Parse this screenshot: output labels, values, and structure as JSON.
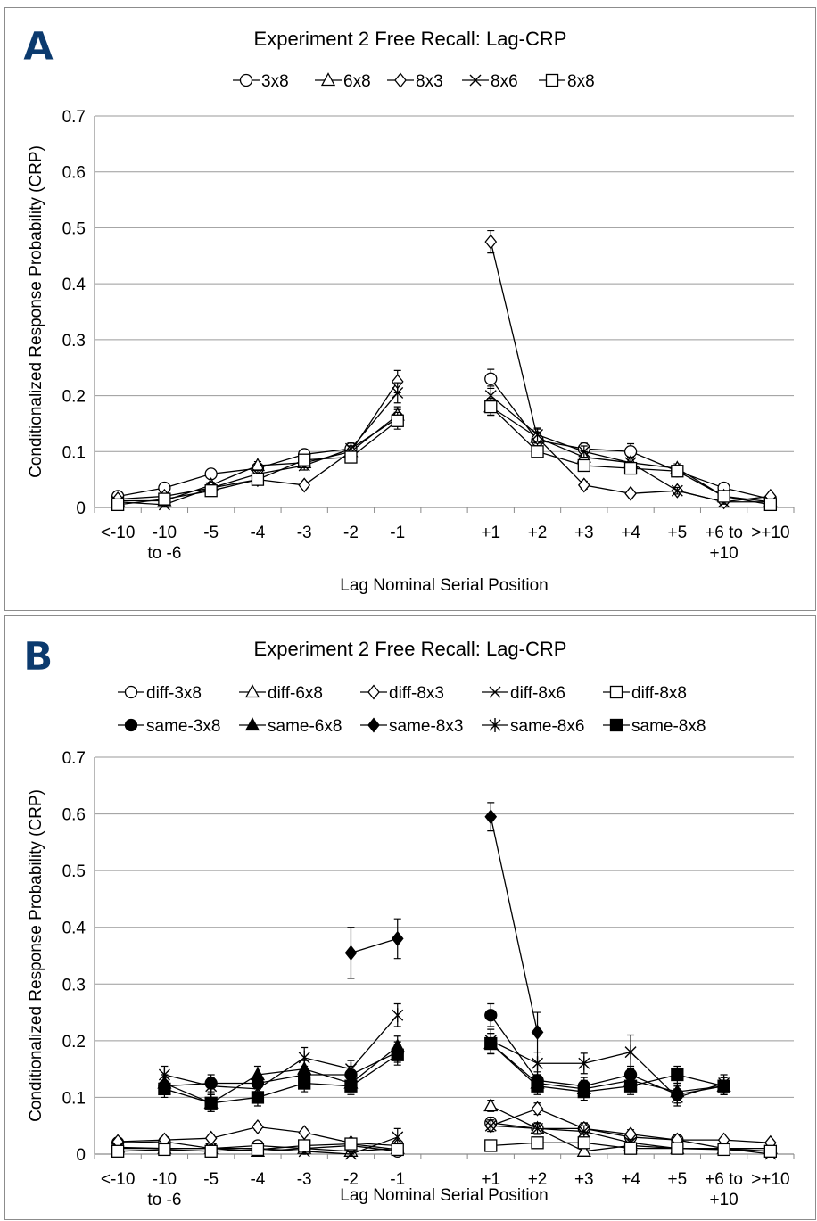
{
  "chart_data": [
    {
      "panel": "A",
      "type": "line",
      "title": "Experiment 2 Free Recall: Lag-CRP",
      "xlabel": "Lag Nominal Serial Position",
      "ylabel": "Conditionalized Response Probability (CRP)",
      "ylim": [
        0,
        0.7
      ],
      "yticks": [
        "0",
        "0.1",
        "0.2",
        "0.3",
        "0.4",
        "0.5",
        "0.6",
        "0.7"
      ],
      "categories": [
        "<-10",
        "-10 to -6",
        "-5",
        "-4",
        "-3",
        "-2",
        "-1",
        "",
        "+1",
        "+2",
        "+3",
        "+4",
        "+5",
        "+6 to +10",
        ">+10"
      ],
      "category_lines": [
        [
          "<-10"
        ],
        [
          "-10",
          "to -6"
        ],
        [
          "-5"
        ],
        [
          "-4"
        ],
        [
          "-3"
        ],
        [
          "-2"
        ],
        [
          "-1"
        ],
        [
          ""
        ],
        [
          "+1"
        ],
        [
          "+2"
        ],
        [
          "+3"
        ],
        [
          "+4"
        ],
        [
          "+5"
        ],
        [
          "+6 to",
          "+10"
        ],
        [
          ">+10"
        ]
      ],
      "grid": "horizontal",
      "legend_position": "top",
      "series": [
        {
          "name": "3x8",
          "marker": "circle",
          "fill": "open",
          "values": [
            0.02,
            0.035,
            0.06,
            0.07,
            0.095,
            0.105,
            0.16,
            null,
            0.23,
            0.12,
            0.105,
            0.1,
            0.065,
            0.035,
            0.015
          ],
          "err": [
            0.005,
            0.005,
            0.006,
            0.007,
            0.009,
            0.01,
            0.015,
            null,
            0.017,
            0.01,
            0.01,
            0.014,
            0.01,
            0.006,
            0.004
          ]
        },
        {
          "name": "6x8",
          "marker": "triangle",
          "fill": "open",
          "values": [
            0.012,
            0.012,
            0.04,
            0.075,
            0.08,
            0.1,
            0.165,
            null,
            0.18,
            0.125,
            0.09,
            0.08,
            0.07,
            0.02,
            0.01
          ],
          "err": [
            0.004,
            0.004,
            0.005,
            0.007,
            0.008,
            0.01,
            0.015,
            null,
            0.015,
            0.01,
            0.01,
            0.01,
            0.008,
            0.005,
            0.004
          ]
        },
        {
          "name": "8x3",
          "marker": "diamond",
          "fill": "open",
          "values": [
            0.015,
            0.02,
            0.035,
            0.05,
            0.04,
            0.1,
            0.225,
            null,
            0.475,
            0.125,
            0.04,
            0.025,
            0.03,
            0.01,
            0.02
          ],
          "err": [
            0.004,
            0.005,
            0.005,
            0.006,
            0.006,
            0.01,
            0.02,
            null,
            0.02,
            0.015,
            0.007,
            0.005,
            0.005,
            0.004,
            0.004
          ]
        },
        {
          "name": "8x6",
          "marker": "x",
          "fill": "open",
          "values": [
            0.01,
            0.005,
            0.035,
            0.06,
            0.075,
            0.105,
            0.205,
            null,
            0.2,
            0.13,
            0.1,
            0.08,
            0.03,
            0.01,
            0.01
          ],
          "err": [
            0.004,
            0.004,
            0.005,
            0.007,
            0.008,
            0.01,
            0.018,
            null,
            0.017,
            0.012,
            0.01,
            0.01,
            0.006,
            0.004,
            0.004
          ]
        },
        {
          "name": "8x8",
          "marker": "square",
          "fill": "open",
          "values": [
            0.005,
            0.015,
            0.03,
            0.05,
            0.085,
            0.09,
            0.155,
            null,
            0.18,
            0.1,
            0.075,
            0.07,
            0.065,
            0.02,
            0.005
          ],
          "err": [
            0.004,
            0.004,
            0.005,
            0.006,
            0.008,
            0.01,
            0.015,
            null,
            0.015,
            0.01,
            0.01,
            0.01,
            0.008,
            0.005,
            0.004
          ]
        }
      ]
    },
    {
      "panel": "B",
      "type": "line",
      "title": "Experiment 2 Free Recall: Lag-CRP",
      "xlabel": "Lag Nominal Serial Position",
      "ylabel": "Conditionalized Response Probability (CRP)",
      "ylim": [
        0,
        0.7
      ],
      "yticks": [
        "0",
        "0.1",
        "0.2",
        "0.3",
        "0.4",
        "0.5",
        "0.6",
        "0.7"
      ],
      "categories": [
        "<-10",
        "-10 to -6",
        "-5",
        "-4",
        "-3",
        "-2",
        "-1",
        "",
        "+1",
        "+2",
        "+3",
        "+4",
        "+5",
        "+6 to +10",
        ">+10"
      ],
      "category_lines": [
        [
          "<-10"
        ],
        [
          "-10",
          "to -6"
        ],
        [
          "-5"
        ],
        [
          "-4"
        ],
        [
          "-3"
        ],
        [
          "-2"
        ],
        [
          "-1"
        ],
        [
          ""
        ],
        [
          "+1"
        ],
        [
          "+2"
        ],
        [
          "+3"
        ],
        [
          "+4"
        ],
        [
          "+5"
        ],
        [
          "+6 to",
          "+10"
        ],
        [
          ">+10"
        ]
      ],
      "grid": "horizontal",
      "legend_position": "top",
      "series": [
        {
          "name": "diff-3x8",
          "marker": "circle",
          "fill": "open",
          "values": [
            0.02,
            0.022,
            0.01,
            0.015,
            0.01,
            0.015,
            0.005,
            null,
            0.055,
            0.045,
            0.045,
            0.03,
            0.025,
            0.01,
            0.005
          ],
          "err": [
            0.004,
            0.004,
            0.005,
            0.005,
            0.005,
            0.005,
            0.005,
            null,
            0.01,
            0.01,
            0.01,
            0.008,
            0.006,
            0.004,
            0.004
          ]
        },
        {
          "name": "diff-6x8",
          "marker": "triangle",
          "fill": "open",
          "values": [
            0.012,
            0.01,
            0.01,
            0.005,
            0.01,
            0.005,
            0.01,
            null,
            0.085,
            0.045,
            0.005,
            0.015,
            0.01,
            0.01,
            0.01
          ],
          "err": [
            0.004,
            0.004,
            0.004,
            0.004,
            0.004,
            0.004,
            0.004,
            null,
            0.01,
            0.01,
            0.004,
            0.005,
            0.004,
            0.004,
            0.004
          ]
        },
        {
          "name": "diff-8x3",
          "marker": "diamond",
          "fill": "open",
          "values": [
            0.022,
            0.025,
            0.028,
            0.048,
            0.038,
            0.02,
            0.015,
            null,
            0.05,
            0.08,
            0.045,
            0.035,
            0.025,
            0.025,
            0.02
          ],
          "err": [
            0.004,
            0.005,
            0.005,
            0.006,
            0.006,
            0.005,
            0.005,
            null,
            0.01,
            0.01,
            0.01,
            0.008,
            0.006,
            0.004,
            0.004
          ]
        },
        {
          "name": "diff-8x6",
          "marker": "x",
          "fill": "open",
          "values": [
            0.01,
            0.01,
            0.01,
            0.01,
            0.005,
            0.0,
            0.03,
            null,
            0.05,
            0.045,
            0.04,
            0.02,
            0.01,
            0.01,
            0.0
          ],
          "err": [
            0.004,
            0.004,
            0.004,
            0.004,
            0.004,
            0.004,
            0.015,
            null,
            0.01,
            0.01,
            0.01,
            0.006,
            0.004,
            0.004,
            0.004
          ]
        },
        {
          "name": "diff-8x8",
          "marker": "square",
          "fill": "open",
          "values": [
            0.005,
            0.008,
            0.005,
            0.008,
            0.015,
            0.018,
            0.008,
            null,
            0.015,
            0.02,
            0.02,
            0.01,
            0.01,
            0.008,
            0.005
          ],
          "err": [
            0.004,
            0.004,
            0.004,
            0.004,
            0.004,
            0.004,
            0.004,
            null,
            0.006,
            0.005,
            0.005,
            0.004,
            0.004,
            0.004,
            0.004
          ]
        },
        {
          "name": "same-3x8",
          "marker": "circle",
          "fill": "solid",
          "values": [
            null,
            0.12,
            0.125,
            0.125,
            0.14,
            0.14,
            0.18,
            null,
            0.245,
            0.13,
            0.12,
            0.14,
            0.105,
            0.12,
            null
          ],
          "err": [
            null,
            0.015,
            0.015,
            0.015,
            0.015,
            0.015,
            0.018,
            null,
            0.02,
            0.015,
            0.015,
            0.015,
            0.015,
            0.015,
            null
          ]
        },
        {
          "name": "same-6x8",
          "marker": "triangle",
          "fill": "solid",
          "values": [
            null,
            0.125,
            0.09,
            0.14,
            0.15,
            0.125,
            0.19,
            null,
            0.195,
            0.125,
            0.115,
            0.13,
            0.11,
            0.12,
            null
          ],
          "err": [
            null,
            0.015,
            0.015,
            0.015,
            0.015,
            0.015,
            0.018,
            null,
            0.018,
            0.015,
            0.015,
            0.015,
            0.015,
            0.015,
            null
          ]
        },
        {
          "name": "same-8x3",
          "marker": "diamond",
          "fill": "solid",
          "values": [
            null,
            null,
            null,
            null,
            null,
            0.355,
            0.38,
            null,
            0.595,
            0.215,
            null,
            null,
            null,
            null,
            null
          ],
          "err": [
            null,
            null,
            null,
            null,
            null,
            0.045,
            0.035,
            null,
            0.025,
            0.035,
            null,
            null,
            null,
            null,
            null
          ]
        },
        {
          "name": "same-8x6",
          "marker": "asterisk",
          "fill": "solid",
          "values": [
            null,
            0.14,
            0.12,
            0.115,
            0.17,
            0.15,
            0.245,
            null,
            0.2,
            0.16,
            0.16,
            0.18,
            0.1,
            0.125,
            null
          ],
          "err": [
            null,
            0.015,
            0.015,
            0.015,
            0.018,
            0.015,
            0.02,
            null,
            0.02,
            0.02,
            0.018,
            0.03,
            0.015,
            0.015,
            null
          ]
        },
        {
          "name": "same-8x8",
          "marker": "square",
          "fill": "solid",
          "values": [
            null,
            0.115,
            0.09,
            0.1,
            0.125,
            0.12,
            0.175,
            null,
            0.195,
            0.12,
            0.11,
            0.12,
            0.14,
            0.12,
            null
          ],
          "err": [
            null,
            0.015,
            0.015,
            0.015,
            0.015,
            0.015,
            0.018,
            null,
            0.018,
            0.015,
            0.015,
            0.015,
            0.015,
            0.015,
            null
          ]
        }
      ]
    }
  ],
  "panels": [
    {
      "letter": "A"
    },
    {
      "letter": "B"
    }
  ]
}
